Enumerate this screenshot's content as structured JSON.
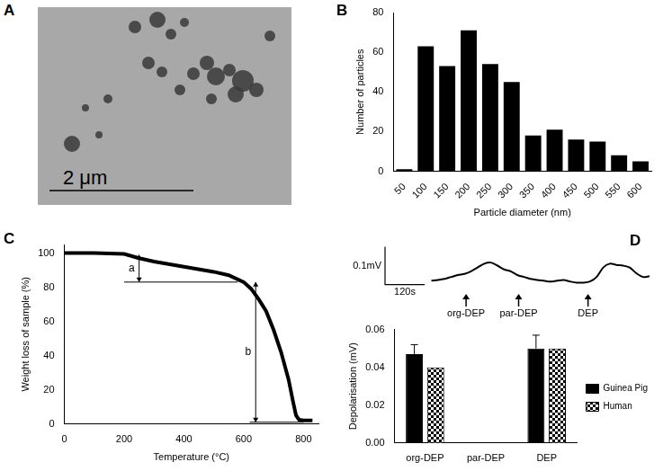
{
  "image_panel": {
    "panel": "A",
    "scale_bar": "2 μm"
  },
  "chart_data": [
    {
      "panel": "B",
      "type": "bar",
      "x_label": "Particle diameter (nm)",
      "y_label": "Number of particles",
      "categories": [
        "50",
        "100",
        "150",
        "200",
        "250",
        "300",
        "350",
        "400",
        "450",
        "500",
        "550",
        "600"
      ],
      "values": [
        1,
        63,
        53,
        71,
        54,
        45,
        18,
        21,
        16,
        15,
        8,
        5
      ],
      "color": "#000000",
      "ylim": [
        0,
        80
      ],
      "yticks": [
        0,
        20,
        40,
        60,
        80
      ],
      "grid": false
    },
    {
      "panel": "C",
      "type": "line",
      "x_label": "Temperature (°C)",
      "y_label": "Weight loss of sample (%)",
      "x": [
        0,
        100,
        200,
        250,
        300,
        400,
        500,
        550,
        600,
        625,
        650,
        675,
        700,
        725,
        750,
        765,
        775,
        785,
        800,
        830
      ],
      "values": [
        100,
        100,
        99.5,
        97,
        95,
        92,
        89,
        87,
        83,
        79,
        73,
        66,
        55,
        42,
        26,
        13,
        5,
        2.5,
        2,
        2
      ],
      "color": "#000000",
      "xlim": [
        0,
        850
      ],
      "xticks": [
        0,
        200,
        400,
        600,
        800
      ],
      "ylim": [
        0,
        105
      ],
      "yticks": [
        0,
        20,
        40,
        60,
        80,
        100
      ],
      "grid": false,
      "annotations": [
        {
          "text": "a",
          "x": 250,
          "y": [
            99,
            83
          ]
        },
        {
          "text": "b",
          "x": 640,
          "y": [
            83,
            1
          ]
        }
      ],
      "lines": [
        {
          "y": 83,
          "x": [
            200,
            580
          ]
        },
        {
          "y": 1,
          "x": [
            620,
            800
          ]
        }
      ]
    },
    {
      "panel": "D",
      "type": "line",
      "x": [
        0,
        20,
        40,
        60,
        80,
        100,
        120,
        140,
        160,
        180,
        200,
        220,
        240,
        260,
        280,
        300,
        320,
        340,
        360,
        380,
        400,
        420,
        440,
        460,
        480,
        500,
        520,
        540,
        560,
        580,
        600,
        620,
        640,
        660
      ],
      "values": [
        0.01,
        0.012,
        0.015,
        0.02,
        0.025,
        0.028,
        0.035,
        0.045,
        0.055,
        0.058,
        0.05,
        0.04,
        0.035,
        0.025,
        0.02,
        0.015,
        0.012,
        0.01,
        0.008,
        0.01,
        0.012,
        0.008,
        0.005,
        0.005,
        0.008,
        0.02,
        0.045,
        0.055,
        0.052,
        0.05,
        0.045,
        0.03,
        0.02,
        0.022
      ],
      "color": "#000000",
      "xlim": [
        -260,
        660
      ],
      "ylim": [
        -0.02,
        0.12
      ],
      "tick_labels": false,
      "grid": false,
      "scale_bar": {
        "x": 120,
        "x_label": "120s",
        "y": 0.1,
        "y_label": "0.1mV"
      },
      "markers": [
        {
          "x": 105,
          "label": "org-DEP"
        },
        {
          "x": 264,
          "label": "par-DEP"
        },
        {
          "x": 474,
          "label": "DEP"
        }
      ]
    },
    {
      "type": "bar",
      "y_label": "Depolarisation (mV)",
      "categories": [
        "org-DEP",
        "par-DEP",
        "DEP"
      ],
      "series": [
        {
          "name": "Guinea Pig",
          "color": "#000000",
          "values": [
            0.047,
            0,
            0.05
          ],
          "errors": [
            0.005,
            0,
            0.007
          ]
        },
        {
          "name": "Human",
          "color": "#ffffff",
          "values": [
            0.04,
            0,
            0.05
          ]
        }
      ],
      "ylim": [
        0,
        0.06
      ],
      "yticks": [
        {
          "value": 0,
          "label": "0.00"
        },
        {
          "value": 0.02,
          "label": "0.02"
        },
        {
          "value": 0.04,
          "label": "0.04"
        },
        {
          "value": 0.06,
          "label": "0.06"
        }
      ],
      "legend": "right",
      "grid": false
    }
  ]
}
